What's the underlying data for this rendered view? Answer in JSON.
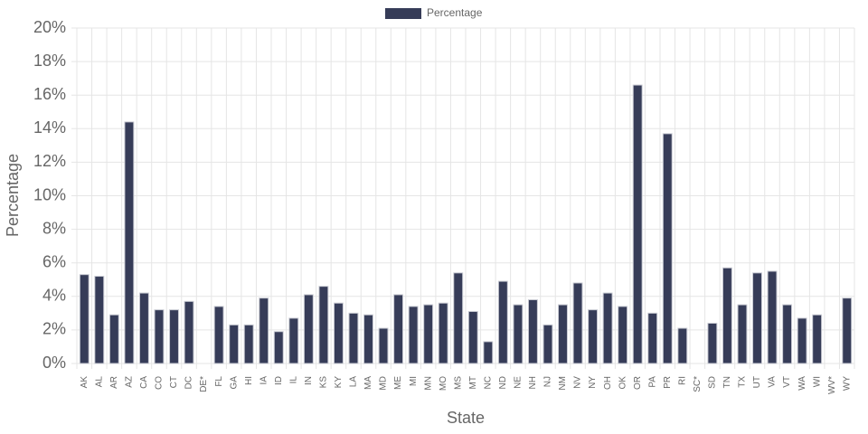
{
  "chart_data": {
    "type": "bar",
    "legend": "top",
    "series": [
      {
        "name": "Percentage",
        "color": "#363c58",
        "values": [
          5.3,
          5.2,
          2.9,
          14.4,
          4.2,
          3.2,
          3.2,
          3.7,
          null,
          3.4,
          2.3,
          2.3,
          3.9,
          1.9,
          2.7,
          4.1,
          4.6,
          3.6,
          3.0,
          2.9,
          2.1,
          4.1,
          3.4,
          3.5,
          3.6,
          5.4,
          3.1,
          1.3,
          4.9,
          3.5,
          3.8,
          2.3,
          3.5,
          4.8,
          3.2,
          4.2,
          3.4,
          16.6,
          3.0,
          13.7,
          2.1,
          null,
          2.4,
          5.7,
          3.5,
          5.4,
          5.5,
          3.5,
          2.7,
          2.9,
          null,
          3.9
        ]
      }
    ],
    "categories": [
      "AK",
      "AL",
      "AR",
      "AZ",
      "CA",
      "CO",
      "CT",
      "DC",
      "DE*",
      "FL",
      "GA",
      "HI",
      "IA",
      "ID",
      "IL",
      "IN",
      "KS",
      "KY",
      "LA",
      "MA",
      "MD",
      "ME",
      "MI",
      "MN",
      "MO",
      "MS",
      "MT",
      "NC",
      "ND",
      "NE",
      "NH",
      "NJ",
      "NM",
      "NV",
      "NY",
      "OH",
      "OK",
      "OR",
      "PA",
      "PR",
      "RI",
      "SC*",
      "SD",
      "TN",
      "TX",
      "UT",
      "VA",
      "VT",
      "WA",
      "WI",
      "WV*",
      "WY"
    ],
    "x_label": "State",
    "y_label": "Percentage",
    "ylim": [
      0,
      20
    ],
    "yticks": [
      {
        "value": 0,
        "label": "0%"
      },
      {
        "value": 2,
        "label": "2%"
      },
      {
        "value": 4,
        "label": "4%"
      },
      {
        "value": 6,
        "label": "6%"
      },
      {
        "value": 8,
        "label": "8%"
      },
      {
        "value": 10,
        "label": "10%"
      },
      {
        "value": 12,
        "label": "12%"
      },
      {
        "value": 14,
        "label": "14%"
      },
      {
        "value": 16,
        "label": "16%"
      },
      {
        "value": 18,
        "label": "18%"
      },
      {
        "value": 20,
        "label": "20%"
      }
    ],
    "grid": true
  }
}
